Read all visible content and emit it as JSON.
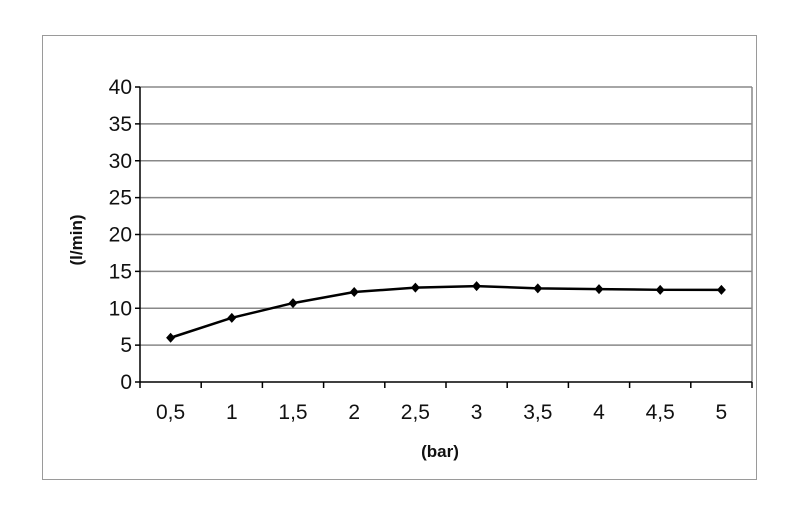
{
  "chart_data": {
    "type": "line",
    "title": "",
    "xlabel": "(bar)",
    "ylabel": "(l/min)",
    "categories": [
      "0,5",
      "1",
      "1,5",
      "2",
      "2,5",
      "3",
      "3,5",
      "4",
      "4,5",
      "5"
    ],
    "series": [
      {
        "values": [
          6.0,
          8.7,
          10.7,
          12.2,
          12.8,
          13.0,
          12.7,
          12.6,
          12.5,
          12.5
        ]
      }
    ],
    "ylim": [
      0,
      40
    ],
    "yticks": [
      "0",
      "5",
      "10",
      "15",
      "20",
      "25",
      "30",
      "35",
      "40"
    ],
    "grid": true,
    "legend": "none",
    "colors": {
      "line": "#000000",
      "grid": "#888888"
    }
  }
}
